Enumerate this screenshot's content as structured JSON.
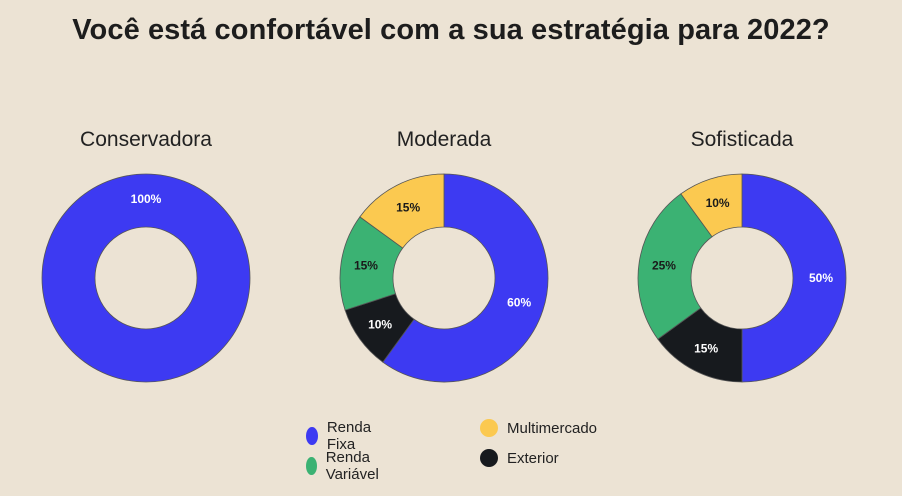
{
  "header": {
    "title": "Você está confortável com a sua estratégia para 2022?"
  },
  "colors": {
    "Renda Fixa": "#3d3af2",
    "Renda Variável": "#3bb273",
    "Multimercado": "#fbc950",
    "Exterior": "#171a1e"
  },
  "legend": [
    {
      "label": "Renda Fixa",
      "color": "#3d3af2"
    },
    {
      "label": "Multimercado",
      "color": "#fbc950"
    },
    {
      "label": "Renda Variável",
      "color": "#3bb273"
    },
    {
      "label": "Exterior",
      "color": "#171a1e"
    }
  ],
  "chart_data": [
    {
      "type": "pie",
      "title": "Conservadora",
      "labels": [
        "Renda Fixa"
      ],
      "values": [
        100
      ],
      "value_labels": [
        "100%"
      ]
    },
    {
      "type": "pie",
      "title": "Moderada",
      "labels": [
        "Renda Fixa",
        "Exterior",
        "Renda Variável",
        "Multimercado"
      ],
      "values": [
        60,
        10,
        15,
        15
      ],
      "value_labels": [
        "60%",
        "10%",
        "15%",
        "15%"
      ]
    },
    {
      "type": "pie",
      "title": "Sofisticada",
      "labels": [
        "Renda Fixa",
        "Exterior",
        "Renda Variável",
        "Multimercado"
      ],
      "values": [
        50,
        15,
        25,
        10
      ],
      "value_labels": [
        "50%",
        "15%",
        "25%",
        "10%"
      ]
    }
  ]
}
